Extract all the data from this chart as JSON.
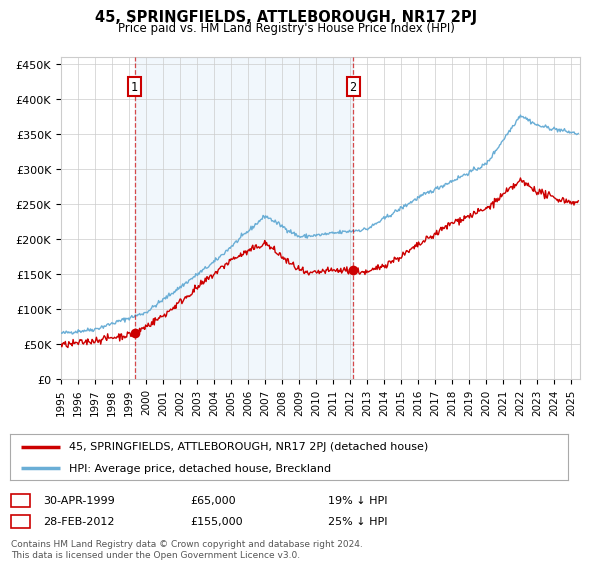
{
  "title": "45, SPRINGFIELDS, ATTLEBOROUGH, NR17 2PJ",
  "subtitle": "Price paid vs. HM Land Registry's House Price Index (HPI)",
  "ylabel_ticks": [
    "£0",
    "£50K",
    "£100K",
    "£150K",
    "£200K",
    "£250K",
    "£300K",
    "£350K",
    "£400K",
    "£450K"
  ],
  "ytick_values": [
    0,
    50000,
    100000,
    150000,
    200000,
    250000,
    300000,
    350000,
    400000,
    450000
  ],
  "ylim": [
    0,
    460000
  ],
  "xlim_start": 1995.0,
  "xlim_end": 2025.5,
  "hpi_color": "#6aaed6",
  "price_color": "#cc0000",
  "shade_color": "#ddeeff",
  "marker1_date": 1999.33,
  "marker1_price": 65000,
  "marker1_label": "1",
  "marker2_date": 2012.17,
  "marker2_price": 155000,
  "marker2_label": "2",
  "vline1_x": 1999.33,
  "vline2_x": 2012.17,
  "legend_label1": "45, SPRINGFIELDS, ATTLEBOROUGH, NR17 2PJ (detached house)",
  "legend_label2": "HPI: Average price, detached house, Breckland",
  "table_row1": [
    "1",
    "30-APR-1999",
    "£65,000",
    "19% ↓ HPI"
  ],
  "table_row2": [
    "2",
    "28-FEB-2012",
    "£155,000",
    "25% ↓ HPI"
  ],
  "footer": "Contains HM Land Registry data © Crown copyright and database right 2024.\nThis data is licensed under the Open Government Licence v3.0.",
  "bg_color": "#ffffff",
  "grid_color": "#cccccc",
  "xtick_years": [
    1995,
    1996,
    1997,
    1998,
    1999,
    2000,
    2001,
    2002,
    2003,
    2004,
    2005,
    2006,
    2007,
    2008,
    2009,
    2010,
    2011,
    2012,
    2013,
    2014,
    2015,
    2016,
    2017,
    2018,
    2019,
    2020,
    2021,
    2022,
    2023,
    2024,
    2025
  ]
}
